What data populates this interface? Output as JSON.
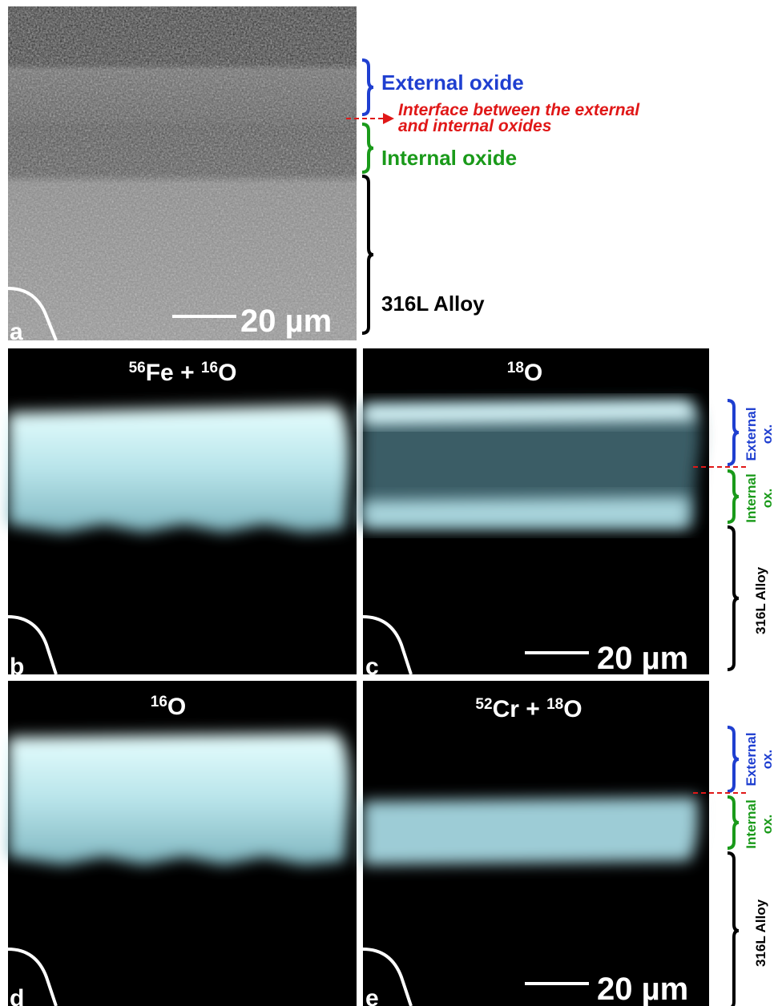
{
  "panel_a": {
    "label": "a",
    "scale_bar": "20 µm",
    "annotations": {
      "external": "External oxide",
      "interface": [
        "Interface between the external",
        "and internal oxides"
      ],
      "internal": "Internal oxide",
      "alloy": "316L Alloy"
    }
  },
  "panel_b": {
    "label": "b",
    "title": [
      {
        "text": "56",
        "sup": true
      },
      {
        "text": "Fe + ",
        "sup": false
      },
      {
        "text": "16",
        "sup": true
      },
      {
        "text": "O",
        "sup": false
      }
    ]
  },
  "panel_c": {
    "label": "c",
    "title": [
      {
        "text": "18",
        "sup": true
      },
      {
        "text": "O",
        "sup": false
      }
    ],
    "scale_bar": "20 µm"
  },
  "panel_d": {
    "label": "d",
    "title": [
      {
        "text": "16",
        "sup": true
      },
      {
        "text": "O",
        "sup": false
      }
    ]
  },
  "panel_e": {
    "label": "e",
    "title": [
      {
        "text": "52",
        "sup": true
      },
      {
        "text": "Cr + ",
        "sup": false
      },
      {
        "text": "18",
        "sup": true
      },
      {
        "text": "O",
        "sup": false
      }
    ],
    "scale_bar": "20 µm"
  },
  "side_annotations": [
    {
      "external": [
        "External",
        "ox."
      ],
      "internal": [
        "Internal",
        "ox."
      ],
      "alloy": "316L Alloy"
    },
    {
      "external": [
        "External",
        "ox."
      ],
      "internal": [
        "Internal",
        "ox."
      ],
      "alloy": "316L Alloy"
    }
  ]
}
